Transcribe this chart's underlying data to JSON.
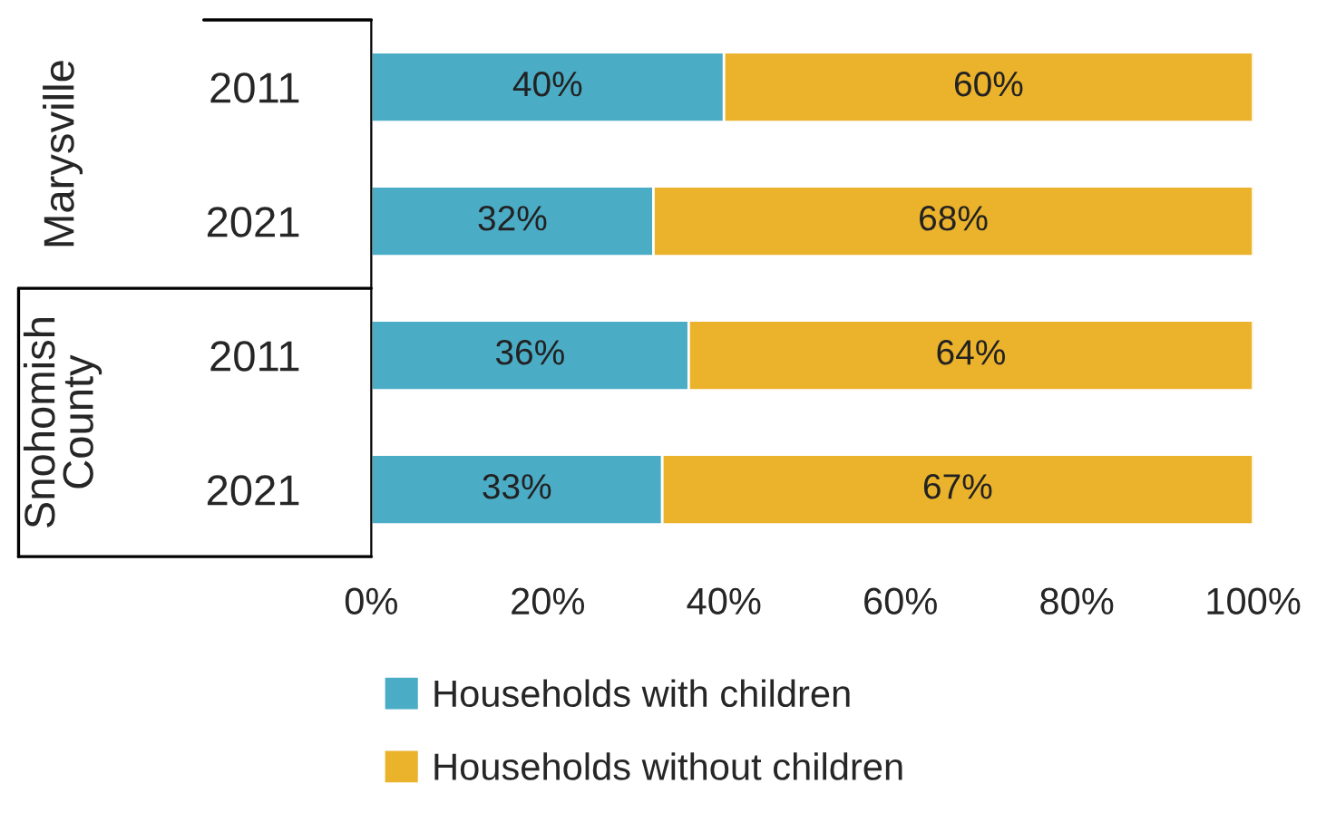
{
  "chart_data": {
    "type": "bar",
    "orientation": "horizontal",
    "stacked": true,
    "categories": [
      "2011",
      "2021",
      "2011",
      "2021"
    ],
    "annotations": [
      "Marysville",
      "Snohomish\nCounty"
    ],
    "series": [
      {
        "name": "Households with children",
        "color": "#4bacc6",
        "values": [
          40,
          32,
          36,
          33
        ],
        "value_labels": [
          "40%",
          "32%",
          "36%",
          "33%"
        ]
      },
      {
        "name": "Households without children",
        "color": "#ebb22c",
        "values": [
          60,
          68,
          64,
          67
        ],
        "value_labels": [
          "60%",
          "68%",
          "64%",
          "67%"
        ]
      }
    ],
    "xlim": [
      0,
      100
    ],
    "xticks": [
      {
        "value": 0,
        "label": "0%"
      },
      {
        "value": 20,
        "label": "20%"
      },
      {
        "value": 40,
        "label": "40%"
      },
      {
        "value": 60,
        "label": "60%"
      },
      {
        "value": 80,
        "label": "80%"
      },
      {
        "value": 100,
        "label": "100%"
      }
    ],
    "grid": false,
    "legend": "bottom"
  }
}
